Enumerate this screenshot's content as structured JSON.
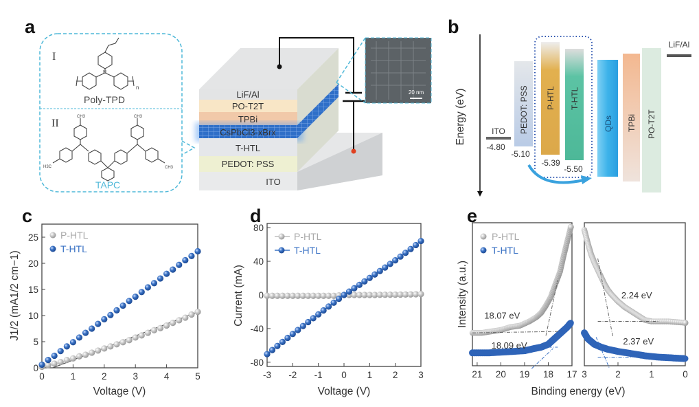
{
  "panels": {
    "a": {
      "label": "a",
      "molecule_1": {
        "numeral": "I",
        "name": "Poly-TPD",
        "subscript_n": "n"
      },
      "molecule_2": {
        "numeral": "II",
        "name": "TAPC",
        "ch3": "CH3",
        "h3c": "H3C"
      },
      "layers": [
        "LiF/Al",
        "PO-T2T",
        "TPBi",
        "CsPbCl3-xBrx",
        "T-HTL",
        "PEDOT: PSS",
        "ITO"
      ],
      "tem_scale": "20 nm",
      "colors": {
        "outline": "#4fb8d8",
        "qd_layer": "#2f6fc8"
      }
    },
    "b": {
      "label": "b",
      "axis_label": "Energy (eV)",
      "levels": [
        {
          "name": "ITO",
          "value": "-4.80",
          "color": "#666666"
        },
        {
          "name": "PEDOT: PSS",
          "value": "-5.10",
          "color": "#b9cbe6"
        },
        {
          "name": "P-HTL",
          "value": "-5.39",
          "color": "#e2b04f"
        },
        {
          "name": "T-HTL",
          "value": "-5.50",
          "color": "#5cc3a4"
        },
        {
          "name": "QDs",
          "color": "#3db3ea"
        },
        {
          "name": "TPBi",
          "color": "#f3c4a3"
        },
        {
          "name": "PO-T2T",
          "color": "#dcebe0"
        },
        {
          "name": "LiF/Al",
          "color": "#555555"
        }
      ]
    },
    "c": {
      "label": "c"
    },
    "d": {
      "label": "d"
    },
    "e": {
      "label": "e"
    }
  },
  "chart_data": [
    {
      "id": "c",
      "type": "scatter",
      "xlabel": "Voltage (V)",
      "ylabel": "J1/2 (mA1/2 cm−1)",
      "xlim": [
        0,
        5
      ],
      "ylim": [
        0,
        27.5
      ],
      "xticks": [
        "0",
        "1",
        "2",
        "3",
        "4",
        "5"
      ],
      "yticks": [
        "0",
        "5",
        "10",
        "15",
        "20",
        "25"
      ],
      "legend": "top-left",
      "x": [
        0,
        0.2,
        0.4,
        0.6,
        0.8,
        1.0,
        1.2,
        1.4,
        1.6,
        1.8,
        2.0,
        2.2,
        2.4,
        2.6,
        2.8,
        3.0,
        3.2,
        3.4,
        3.6,
        3.8,
        4.0,
        4.2,
        4.4,
        4.6,
        4.8,
        5.0
      ],
      "series": [
        {
          "name": "P-HTL",
          "color": "#bdbdbd",
          "values": [
            0.2,
            0.5,
            0.8,
            1.1,
            1.5,
            1.8,
            2.2,
            2.5,
            2.9,
            3.3,
            3.7,
            4.1,
            4.5,
            4.9,
            5.3,
            5.8,
            6.2,
            6.7,
            7.2,
            7.6,
            8.1,
            8.6,
            9.1,
            9.6,
            10.2,
            10.7
          ],
          "fit": [
            [
              0.35,
              0
            ],
            [
              5,
              10.7
            ]
          ]
        },
        {
          "name": "T-HTL",
          "color": "#3a72c4",
          "values": [
            0.6,
            1.5,
            2.3,
            3.2,
            4.1,
            4.9,
            5.8,
            6.7,
            7.5,
            8.4,
            9.3,
            10.1,
            11.0,
            11.9,
            12.8,
            13.6,
            14.5,
            15.4,
            16.2,
            17.1,
            18.0,
            18.8,
            19.7,
            20.6,
            21.4,
            22.3
          ]
        }
      ]
    },
    {
      "id": "d",
      "type": "line",
      "xlabel": "Voltage (V)",
      "ylabel": "Current (mA)",
      "xlim": [
        -3,
        3
      ],
      "ylim": [
        -85,
        85
      ],
      "xticks": [
        "-3",
        "-2",
        "-1",
        "0",
        "1",
        "2",
        "3"
      ],
      "yticks": [
        "-80",
        "-40",
        "0",
        "40",
        "80"
      ],
      "legend": "top-left",
      "x": [
        -3,
        -2.8,
        -2.6,
        -2.4,
        -2.2,
        -2,
        -1.8,
        -1.6,
        -1.4,
        -1.2,
        -1,
        -0.8,
        -0.6,
        -0.4,
        -0.2,
        0,
        0.2,
        0.4,
        0.6,
        0.8,
        1,
        1.2,
        1.4,
        1.6,
        1.8,
        2,
        2.2,
        2.4,
        2.6,
        2.8,
        3
      ],
      "series": [
        {
          "name": "P-HTL",
          "color": "#bdbdbd",
          "values": [
            -1,
            -1,
            -1,
            -1,
            -1,
            -1,
            -1,
            -1,
            -1,
            -1,
            -1,
            -1,
            -1,
            -1,
            -0.5,
            0,
            0,
            0,
            0,
            0,
            0,
            0,
            0.2,
            0.2,
            0.3,
            0.3,
            0.4,
            0.5,
            0.6,
            0.8,
            1
          ]
        },
        {
          "name": "T-HTL",
          "color": "#3a72c4",
          "values": [
            -70.4,
            -65.5,
            -60.7,
            -55.9,
            -51.1,
            -46.4,
            -41.7,
            -37.0,
            -32.3,
            -27.7,
            -23.1,
            -18.4,
            -13.8,
            -9.2,
            -4.6,
            0,
            4.0,
            8.0,
            12.0,
            16.1,
            20.2,
            24.3,
            28.4,
            32.6,
            36.9,
            41.2,
            45.6,
            50.1,
            54.6,
            59.3,
            64.1
          ]
        }
      ]
    },
    {
      "id": "e",
      "type": "scatter",
      "xlabel": "Binding energy (eV)",
      "ylabel": "Intensity (a.u.)",
      "legend": "top-left",
      "subplots": [
        {
          "xlim": [
            21.2,
            17
          ],
          "ylim": [
            0,
            1
          ],
          "xticks": [
            "21",
            "20",
            "19",
            "18",
            "17"
          ],
          "series": [
            {
              "name": "P-HTL",
              "color": "#bdbdbd",
              "points": [
                [
                  21.2,
                  0.23
                ],
                [
                  20.8,
                  0.23
                ],
                [
                  20.4,
                  0.24
                ],
                [
                  20,
                  0.25
                ],
                [
                  19.6,
                  0.27
                ],
                [
                  19.2,
                  0.28
                ],
                [
                  18.8,
                  0.31
                ],
                [
                  18.5,
                  0.34
                ],
                [
                  18.3,
                  0.37
                ],
                [
                  18.1,
                  0.42
                ],
                [
                  17.9,
                  0.48
                ],
                [
                  17.7,
                  0.57
                ],
                [
                  17.5,
                  0.66
                ],
                [
                  17.35,
                  0.77
                ],
                [
                  17.2,
                  0.87
                ],
                [
                  17.05,
                  0.97
                ]
              ]
            },
            {
              "name": "T-HTL",
              "color": "#3a72c4",
              "points": [
                [
                  21.2,
                  0.09
                ],
                [
                  20.5,
                  0.09
                ],
                [
                  20,
                  0.095
                ],
                [
                  19.5,
                  0.1
                ],
                [
                  19,
                  0.105
                ],
                [
                  18.6,
                  0.12
                ],
                [
                  18.3,
                  0.13
                ],
                [
                  18,
                  0.15
                ],
                [
                  17.8,
                  0.18
                ],
                [
                  17.6,
                  0.21
                ],
                [
                  17.4,
                  0.24
                ],
                [
                  17.2,
                  0.27
                ],
                [
                  17.05,
                  0.3
                ]
              ]
            }
          ],
          "guides": [
            {
              "color": "#666666",
              "points": [
                [
                  21.2,
                  0.23
                ],
                [
                  17.5,
                  0.24
                ]
              ]
            },
            {
              "color": "#666666",
              "points": [
                [
                  18.1,
                  0.21
                ],
                [
                  17.6,
                  0.6
                ]
              ]
            },
            {
              "color": "#3a72c4",
              "points": [
                [
                  18.0,
                  0.13
                ],
                [
                  17.6,
                  0.13
                ]
              ]
            },
            {
              "color": "#3a72c4",
              "points": [
                [
                  18.7,
                  -0.02
                ],
                [
                  17.8,
                  0.12
                ]
              ]
            }
          ],
          "annotations": [
            {
              "text": "18.07 eV",
              "x": 20.7,
              "y": 0.33
            },
            {
              "text": "18.09 eV",
              "x": 20.4,
              "y": 0.12
            }
          ]
        },
        {
          "xlim": [
            3,
            0
          ],
          "ylim": [
            0,
            1
          ],
          "xticks": [
            "3",
            "2",
            "1",
            "0"
          ],
          "series": [
            {
              "name": "P-HTL",
              "color": "#bdbdbd",
              "points": [
                [
                  3,
                  0.95
                ],
                [
                  2.9,
                  0.86
                ],
                [
                  2.8,
                  0.78
                ],
                [
                  2.7,
                  0.72
                ],
                [
                  2.6,
                  0.67
                ],
                [
                  2.5,
                  0.62
                ],
                [
                  2.4,
                  0.57
                ],
                [
                  2.3,
                  0.53
                ],
                [
                  2.2,
                  0.5
                ],
                [
                  2.0,
                  0.45
                ],
                [
                  1.8,
                  0.41
                ],
                [
                  1.6,
                  0.38
                ],
                [
                  1.4,
                  0.35
                ],
                [
                  1.2,
                  0.32
                ],
                [
                  1.0,
                  0.31
                ],
                [
                  0.5,
                  0.31
                ],
                [
                  0,
                  0.3
                ]
              ]
            },
            {
              "name": "T-HTL",
              "color": "#3a72c4",
              "points": [
                [
                  3,
                  0.23
                ],
                [
                  2.9,
                  0.19
                ],
                [
                  2.8,
                  0.17
                ],
                [
                  2.7,
                  0.15
                ],
                [
                  2.5,
                  0.13
                ],
                [
                  2.3,
                  0.115
                ],
                [
                  2.0,
                  0.1
                ],
                [
                  1.6,
                  0.085
                ],
                [
                  1.2,
                  0.07
                ],
                [
                  0.8,
                  0.06
                ],
                [
                  0.4,
                  0.055
                ],
                [
                  0,
                  0.05
                ]
              ]
            }
          ],
          "guides": [
            {
              "color": "#666666",
              "points": [
                [
                  2.6,
                  0.31
                ],
                [
                  0.8,
                  0.31
                ]
              ]
            },
            {
              "color": "#666666",
              "points": [
                [
                  2.6,
                  0.75
                ],
                [
                  2.15,
                  0.2
                ]
              ]
            },
            {
              "color": "#3a72c4",
              "points": [
                [
                  2.6,
                  0.06
                ],
                [
                  1.6,
                  0.06
                ]
              ]
            },
            {
              "color": "#3a72c4",
              "points": [
                [
                  2.65,
                  0.2
                ],
                [
                  2.25,
                  -0.02
                ]
              ]
            }
          ],
          "annotations": [
            {
              "text": "2.24 eV",
              "x": 1.9,
              "y": 0.47
            },
            {
              "text": "2.37 eV",
              "x": 1.85,
              "y": 0.15
            }
          ]
        }
      ]
    }
  ]
}
